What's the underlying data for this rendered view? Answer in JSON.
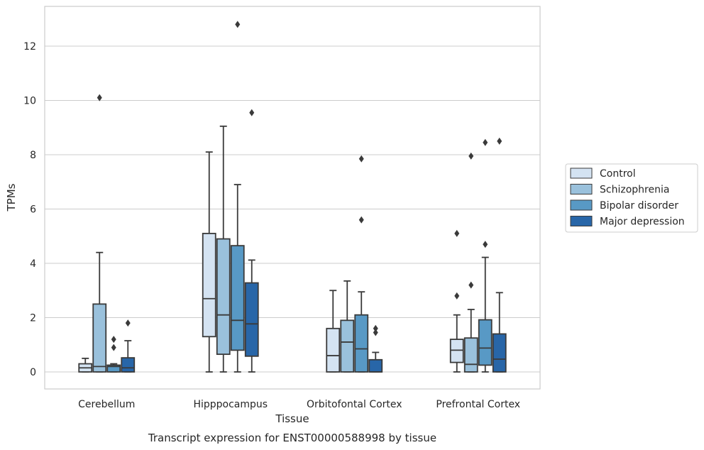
{
  "chart_data": {
    "type": "box",
    "caption": "Transcript expression for ENST00000588998 by tissue",
    "xlabel": "Tissue",
    "ylabel": "TPMs",
    "ylim": [
      -0.6,
      13.5
    ],
    "yticks": [
      0,
      2,
      4,
      6,
      8,
      10,
      12
    ],
    "grid": "horizontal",
    "legend_position": "right",
    "categories": [
      "Cerebellum",
      "Hipppocampus",
      "Orbitofontal Cortex",
      "Prefrontal Cortex"
    ],
    "series": [
      {
        "name": "Control",
        "color": "#d4e3f2",
        "boxes": [
          {
            "q1": 0.0,
            "median": 0.15,
            "q3": 0.3,
            "whisker_low": 0.0,
            "whisker_high": 0.5,
            "outliers": []
          },
          {
            "q1": 1.3,
            "median": 2.7,
            "q3": 5.1,
            "whisker_low": 0.0,
            "whisker_high": 8.1,
            "outliers": []
          },
          {
            "q1": 0.0,
            "median": 0.6,
            "q3": 1.6,
            "whisker_low": 0.0,
            "whisker_high": 3.0,
            "outliers": []
          },
          {
            "q1": 0.35,
            "median": 0.8,
            "q3": 1.2,
            "whisker_low": 0.0,
            "whisker_high": 2.1,
            "outliers": [
              2.8,
              5.1
            ]
          }
        ]
      },
      {
        "name": "Schizophrenia",
        "color": "#9ac1dc",
        "boxes": [
          {
            "q1": 0.0,
            "median": 0.2,
            "q3": 2.5,
            "whisker_low": 0.0,
            "whisker_high": 4.4,
            "outliers": [
              10.1
            ]
          },
          {
            "q1": 0.65,
            "median": 2.1,
            "q3": 4.9,
            "whisker_low": 0.0,
            "whisker_high": 9.05,
            "outliers": []
          },
          {
            "q1": 0.0,
            "median": 1.1,
            "q3": 1.9,
            "whisker_low": 0.0,
            "whisker_high": 3.35,
            "outliers": []
          },
          {
            "q1": 0.0,
            "median": 0.28,
            "q3": 1.25,
            "whisker_low": 0.0,
            "whisker_high": 2.3,
            "outliers": [
              3.2,
              7.95
            ]
          }
        ]
      },
      {
        "name": "Bipolar disorder",
        "color": "#5899c5",
        "boxes": [
          {
            "q1": 0.0,
            "median": 0.2,
            "q3": 0.25,
            "whisker_low": 0.0,
            "whisker_high": 0.3,
            "outliers": [
              0.9,
              1.2
            ]
          },
          {
            "q1": 0.8,
            "median": 1.9,
            "q3": 4.65,
            "whisker_low": 0.0,
            "whisker_high": 6.9,
            "outliers": [
              12.8
            ]
          },
          {
            "q1": 0.0,
            "median": 0.85,
            "q3": 2.1,
            "whisker_low": 0.0,
            "whisker_high": 2.95,
            "outliers": [
              5.6,
              7.85
            ]
          },
          {
            "q1": 0.25,
            "median": 0.88,
            "q3": 1.92,
            "whisker_low": 0.0,
            "whisker_high": 4.22,
            "outliers": [
              4.7,
              8.45
            ]
          }
        ]
      },
      {
        "name": "Major depression",
        "color": "#2866a8",
        "boxes": [
          {
            "q1": 0.0,
            "median": 0.15,
            "q3": 0.52,
            "whisker_low": 0.0,
            "whisker_high": 1.15,
            "outliers": [
              1.8
            ]
          },
          {
            "q1": 0.58,
            "median": 1.77,
            "q3": 3.28,
            "whisker_low": 0.0,
            "whisker_high": 4.12,
            "outliers": [
              9.55
            ]
          },
          {
            "q1": 0.0,
            "median": 0.0,
            "q3": 0.45,
            "whisker_low": 0.0,
            "whisker_high": 0.72,
            "outliers": [
              1.45,
              1.6
            ]
          },
          {
            "q1": 0.0,
            "median": 0.47,
            "q3": 1.4,
            "whisker_low": 0.0,
            "whisker_high": 2.92,
            "outliers": [
              8.5
            ]
          }
        ]
      }
    ]
  }
}
